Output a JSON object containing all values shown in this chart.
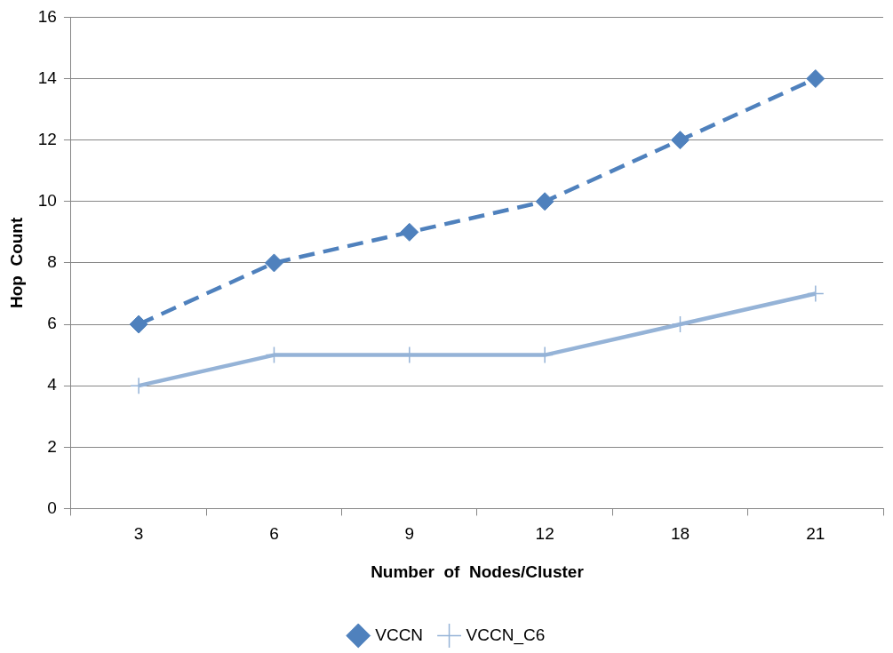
{
  "chart_data": {
    "type": "line",
    "xlabel": "Number  of  Nodes/Cluster",
    "ylabel": "Hop  Count",
    "categories": [
      "3",
      "6",
      "9",
      "12",
      "18",
      "21"
    ],
    "series": [
      {
        "name": "VCCN",
        "color": "#4f81bd",
        "values": [
          6,
          8,
          9,
          10,
          12,
          14
        ],
        "marker": "diamond",
        "line_style": "dashed"
      },
      {
        "name": "VCCN_C6",
        "color": "#95b3d7",
        "values": [
          4,
          5,
          5,
          5,
          6,
          7
        ],
        "marker": "cross",
        "line_style": "solid"
      }
    ],
    "ylim": [
      0,
      16
    ],
    "yticks": [
      0,
      2,
      4,
      6,
      8,
      10,
      12,
      14,
      16
    ],
    "grid": "y",
    "legend": "bottom"
  }
}
